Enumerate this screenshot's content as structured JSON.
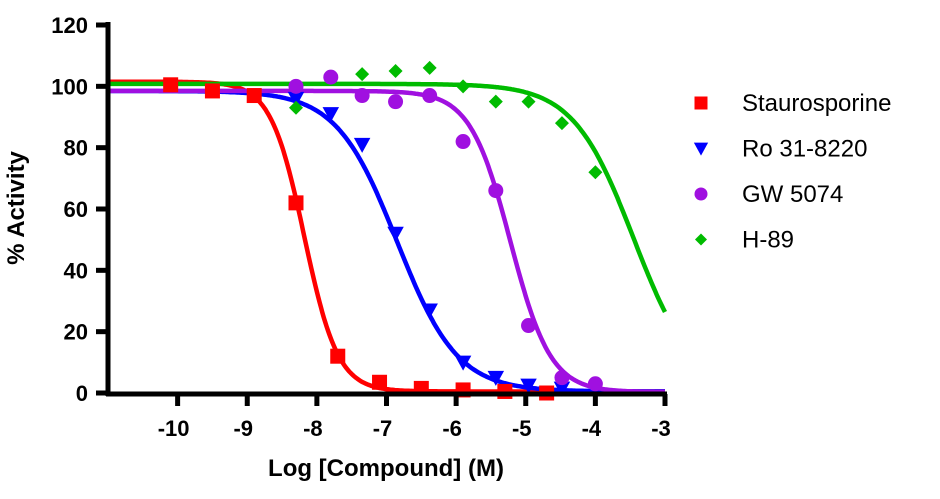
{
  "chart_data": {
    "type": "scatter",
    "xlabel": "Log [Compound] (M)",
    "ylabel": "% Activity",
    "xlim": [
      -11,
      -3
    ],
    "ylim": [
      0,
      120
    ],
    "xticks": [
      "-10",
      "-9",
      "-8",
      "-7",
      "-6",
      "-5",
      "-4",
      "-3"
    ],
    "yticks": [
      "0",
      "20",
      "40",
      "60",
      "80",
      "100",
      "120"
    ],
    "grid": false,
    "legend_position": "right",
    "series": [
      {
        "name": "Staurosporine",
        "color": "#ff0000",
        "marker": "square",
        "x": [
          -10.1,
          -9.5,
          -8.9,
          -8.3,
          -7.7,
          -7.1,
          -6.5,
          -5.9,
          -5.3,
          -4.7
        ],
        "y": [
          100.5,
          98.5,
          97,
          62,
          12,
          3.5,
          1.5,
          1,
          0.5,
          0
        ],
        "fit": {
          "top": 101.5,
          "bottom": 0.5,
          "logIC50": -8.18,
          "hill": 1.8
        }
      },
      {
        "name": "Ro 31-8220",
        "color": "#0000ff",
        "marker": "triangle-down",
        "x": [
          -8.3,
          -7.8,
          -7.35,
          -6.87,
          -6.38,
          -5.9,
          -5.43,
          -4.96,
          -4.48
        ],
        "y": [
          96,
          91,
          81,
          52,
          27,
          10,
          5,
          2.5,
          1.5
        ],
        "fit": {
          "top": 98.5,
          "bottom": 0.5,
          "logIC50": -6.85,
          "hill": 1.0
        }
      },
      {
        "name": "GW 5074",
        "color": "#a010e0",
        "marker": "circle",
        "x": [
          -8.3,
          -7.8,
          -7.35,
          -6.87,
          -6.38,
          -5.9,
          -5.43,
          -4.96,
          -4.48,
          -4.0
        ],
        "y": [
          100,
          103,
          97,
          95,
          97,
          82,
          66,
          22,
          5,
          3
        ],
        "fit": {
          "top": 98.5,
          "bottom": 0.3,
          "logIC50": -5.22,
          "hill": 1.5
        }
      },
      {
        "name": "H-89",
        "color": "#00bb00",
        "marker": "diamond",
        "x": [
          -8.3,
          -7.35,
          -6.87,
          -6.38,
          -5.9,
          -5.43,
          -4.96,
          -4.48,
          -4.0
        ],
        "y": [
          93,
          104,
          105,
          106,
          100,
          95,
          95,
          88,
          72
        ],
        "fit": {
          "top": 100.8,
          "bottom": 0,
          "logIC50": -3.45,
          "hill": 1.0
        }
      }
    ]
  }
}
